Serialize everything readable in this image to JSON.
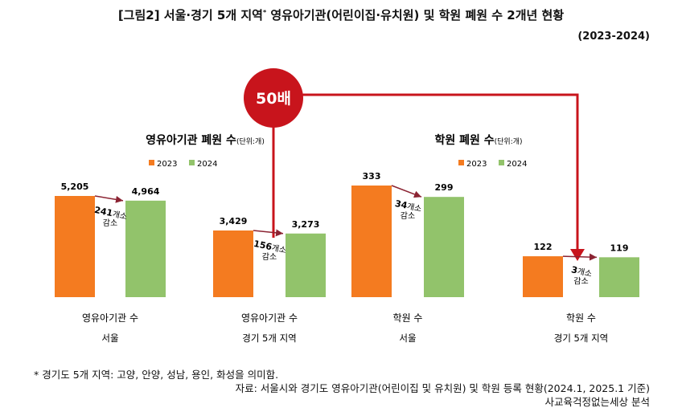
{
  "title": "[그림2] 서울·경기 5개 지역",
  "title_mark": "*",
  "title_rest": " 영유아기관(어린이집·유치원) 및 학원 폐원 수 2개년 현황",
  "period": "(2023-2024)",
  "callout": "50배",
  "colors": {
    "2023": "#F47B20",
    "2024": "#92C36B",
    "arrow": "#8B2332",
    "callout": "#C8141C"
  },
  "chart_data": [
    {
      "type": "bar",
      "title": "영유아기관 폐원 수",
      "unit": "(단위:개)",
      "legend": [
        "2023",
        "2024"
      ],
      "groups": [
        {
          "category": "영유아기관 수",
          "region": "서울",
          "values": [
            5205,
            4964
          ],
          "labels": [
            "5,205",
            "4,964"
          ],
          "change_num": "241",
          "change_unit": "개소",
          "change_word": "감소"
        },
        {
          "category": "영유아기관 수",
          "region": "경기 5개 지역",
          "values": [
            3429,
            3273
          ],
          "labels": [
            "3,429",
            "3,273"
          ],
          "change_num": "156",
          "change_unit": "개소",
          "change_word": "감소"
        }
      ]
    },
    {
      "type": "bar",
      "title": "학원 폐원 수",
      "unit": "(단위:개)",
      "legend": [
        "2023",
        "2024"
      ],
      "groups": [
        {
          "category": "학원 수",
          "region": "서울",
          "values": [
            333,
            299
          ],
          "labels": [
            "333",
            "299"
          ],
          "change_num": "34",
          "change_unit": "개소",
          "change_word": "감소"
        },
        {
          "category": "학원 수",
          "region": "경기 5개 지역",
          "values": [
            122,
            119
          ],
          "labels": [
            "122",
            "119"
          ],
          "change_num": "3",
          "change_unit": "개소",
          "change_word": "감소"
        }
      ]
    }
  ],
  "footnotes": {
    "note": "* 경기도 5개 지역: 고양, 안양, 성남, 용인, 화성을 의미함.",
    "source": "자료: 서울시와 경기도 영유아기관(어린이집 및 유치원) 및 학원 등록 현황(2024.1, 2025.1 기준)",
    "analysis": "사교육걱정없는세상 분석"
  }
}
